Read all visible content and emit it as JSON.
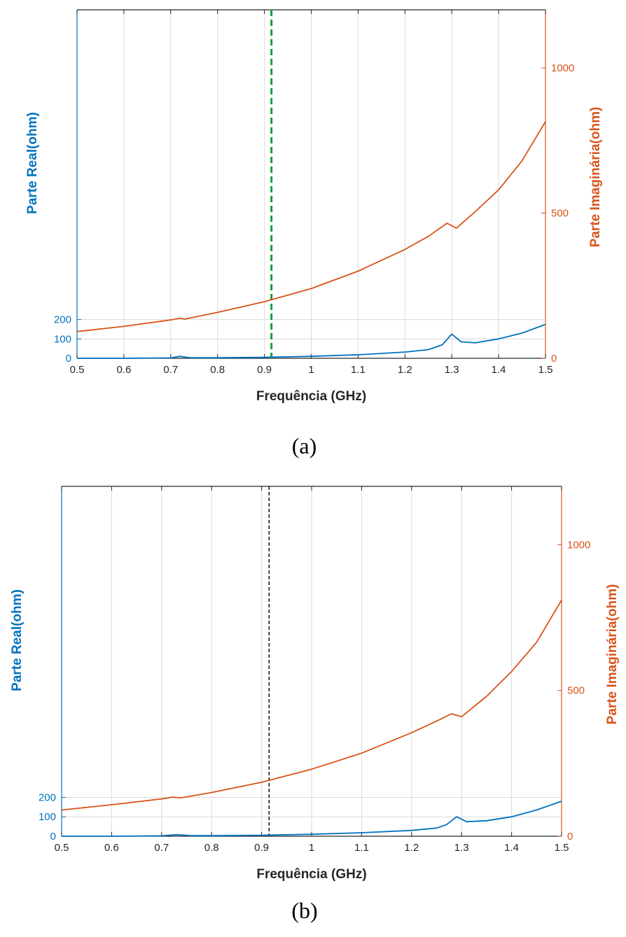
{
  "colors": {
    "real": "#0072BD",
    "imag": "#D95319",
    "marker_a": "#1A9E3A",
    "marker_b": "#000000",
    "grid": "#DADADA"
  },
  "chart_data": [
    {
      "type": "line",
      "caption": "(a)",
      "xlabel": "Frequência (GHz)",
      "ylabel_left": "Parte Real(ohm)",
      "ylabel_right": "Parte Imaginária(ohm)",
      "xlim": [
        0.5,
        1.5
      ],
      "ylim_left": [
        0,
        1800
      ],
      "ylim_right": [
        0,
        1200
      ],
      "x_ticks": [
        "0.5",
        "0.6",
        "0.7",
        "0.8",
        "0.9",
        "1",
        "1.1",
        "1.2",
        "1.3",
        "1.4",
        "1.5"
      ],
      "y_ticks_left": [
        "0",
        "100",
        "200"
      ],
      "y_ticks_right": [
        "0",
        "500",
        "1000"
      ],
      "grid": "vertical lines at x ticks; horizontal lines at left y ticks 100 and 200",
      "marker_line": {
        "x": 0.915,
        "style": "dashed",
        "color": "green"
      },
      "series": [
        {
          "axis": "left",
          "x": [
            0.5,
            0.6,
            0.7,
            0.72,
            0.74,
            0.8,
            0.9,
            1.0,
            1.1,
            1.2,
            1.25,
            1.28,
            1.3,
            1.32,
            1.35,
            1.4,
            1.45,
            1.5
          ],
          "y": [
            0,
            0,
            2,
            10,
            3,
            3,
            5,
            10,
            18,
            32,
            45,
            70,
            125,
            85,
            80,
            100,
            130,
            175
          ]
        },
        {
          "axis": "right",
          "x": [
            0.5,
            0.6,
            0.7,
            0.72,
            0.73,
            0.8,
            0.9,
            1.0,
            1.1,
            1.2,
            1.25,
            1.29,
            1.31,
            1.35,
            1.4,
            1.45,
            1.5
          ],
          "y": [
            92,
            110,
            132,
            138,
            135,
            158,
            195,
            240,
            300,
            375,
            420,
            465,
            448,
            505,
            580,
            680,
            815
          ]
        }
      ]
    },
    {
      "type": "line",
      "caption": "(b)",
      "xlabel": "Frequência (GHz)",
      "ylabel_left": "Parte Real(ohm)",
      "ylabel_right": "Parte Imaginária(ohm)",
      "xlim": [
        0.5,
        1.5
      ],
      "ylim_left": [
        0,
        1800
      ],
      "ylim_right": [
        0,
        1200
      ],
      "x_ticks": [
        "0.5",
        "0.6",
        "0.7",
        "0.8",
        "0.9",
        "1",
        "1.1",
        "1.2",
        "1.3",
        "1.4",
        "1.5"
      ],
      "y_ticks_left": [
        "0",
        "100",
        "200"
      ],
      "y_ticks_right": [
        "0",
        "500",
        "1000"
      ],
      "grid": "vertical lines at x ticks; horizontal lines at left y ticks 100 and 200",
      "marker_line": {
        "x": 0.915,
        "style": "dashed",
        "color": "black"
      },
      "series": [
        {
          "axis": "left",
          "x": [
            0.5,
            0.6,
            0.7,
            0.73,
            0.76,
            0.8,
            0.9,
            1.0,
            1.1,
            1.2,
            1.25,
            1.27,
            1.29,
            1.31,
            1.35,
            1.4,
            1.45,
            1.5
          ],
          "y": [
            0,
            0,
            2,
            8,
            3,
            3,
            5,
            10,
            18,
            30,
            42,
            60,
            100,
            75,
            80,
            100,
            135,
            180
          ]
        },
        {
          "axis": "right",
          "x": [
            0.5,
            0.6,
            0.7,
            0.72,
            0.74,
            0.8,
            0.9,
            1.0,
            1.1,
            1.2,
            1.25,
            1.28,
            1.3,
            1.35,
            1.4,
            1.45,
            1.5
          ],
          "y": [
            90,
            108,
            128,
            134,
            132,
            150,
            185,
            230,
            285,
            355,
            395,
            420,
            410,
            480,
            565,
            665,
            810
          ]
        }
      ]
    }
  ]
}
